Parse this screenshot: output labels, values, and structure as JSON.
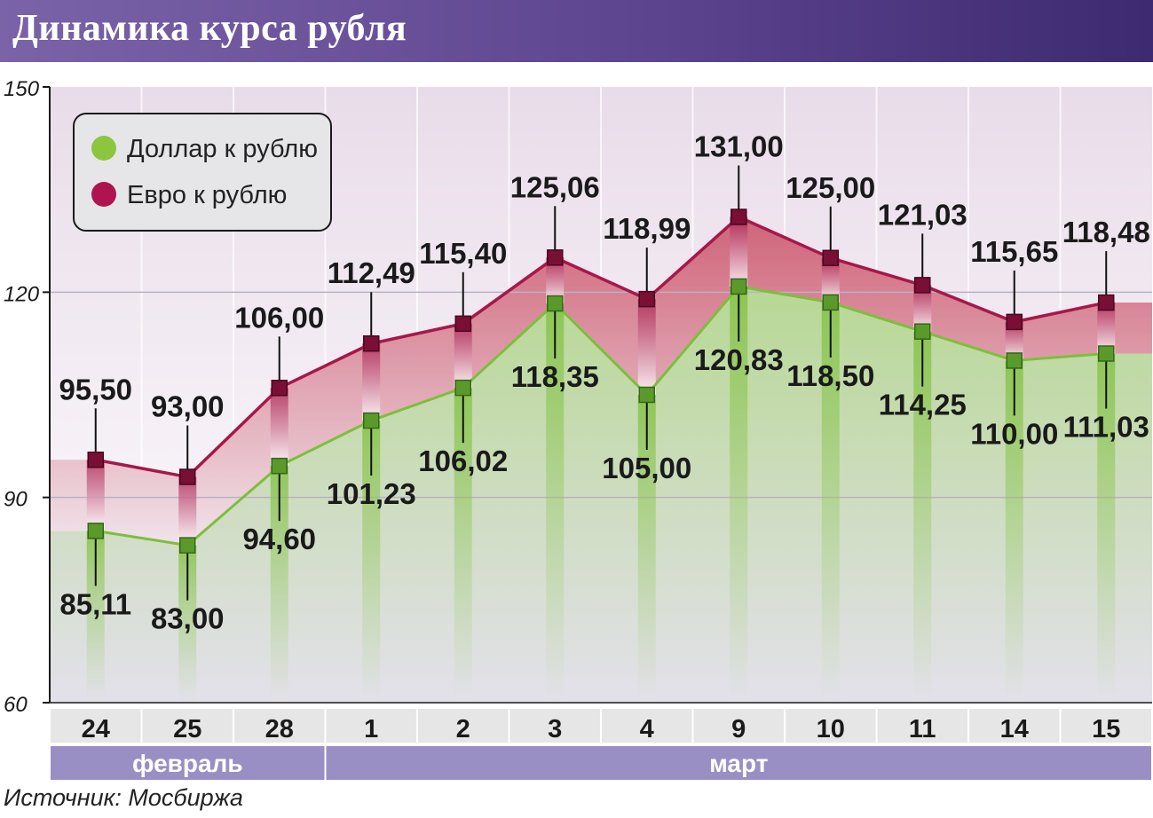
{
  "header": {
    "title": "Динамика курса рубля"
  },
  "chart_data": {
    "type": "line",
    "title": "Динамика курса рубля",
    "categories": [
      "24",
      "25",
      "28",
      "1",
      "2",
      "3",
      "4",
      "9",
      "10",
      "11",
      "14",
      "15"
    ],
    "months": [
      {
        "label": "февраль",
        "span": [
          0,
          2
        ]
      },
      {
        "label": "март",
        "span": [
          3,
          11
        ]
      }
    ],
    "series": [
      {
        "name": "Доллар к рублю",
        "color": "#7dbf3c",
        "values": [
          85.11,
          83.0,
          94.6,
          101.23,
          106.02,
          118.35,
          105.0,
          120.83,
          118.5,
          114.25,
          110.0,
          111.03
        ],
        "labels": [
          "85,11",
          "83,00",
          "94,60",
          "101,23",
          "106,02",
          "118,35",
          "105,00",
          "120,83",
          "118,50",
          "114,25",
          "110,00",
          "111,03"
        ]
      },
      {
        "name": "Евро к рублю",
        "color": "#a8174a",
        "values": [
          95.5,
          93.0,
          106.0,
          112.49,
          115.4,
          125.06,
          118.99,
          131.0,
          125.0,
          121.03,
          115.65,
          118.48
        ],
        "labels": [
          "95,50",
          "93,00",
          "106,00",
          "112,49",
          "115,40",
          "125,06",
          "118,99",
          "131,00",
          "125,00",
          "121,03",
          "115,65",
          "118,48"
        ]
      }
    ],
    "ylim": [
      60,
      150
    ],
    "yticks": [
      "60",
      "90",
      "120",
      "150"
    ],
    "grid": true,
    "legend": "top-left"
  },
  "source": "Источник: Мосбиржа"
}
